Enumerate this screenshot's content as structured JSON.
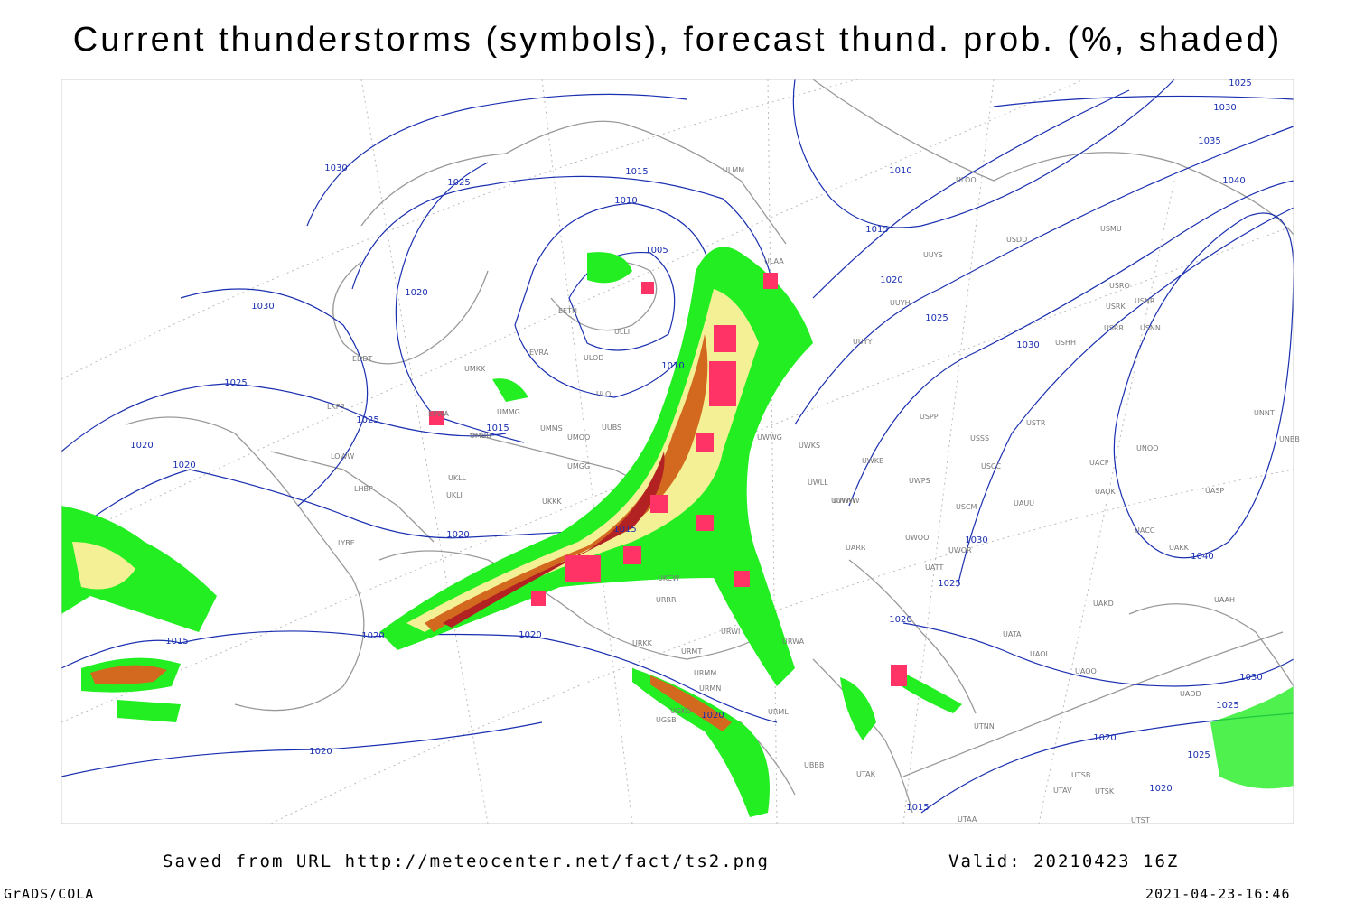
{
  "title": "Current thunderstorms (symbols), forecast thund. prob. (%, shaded)",
  "isobar_labels": [
    1030,
    1025,
    1015,
    1010,
    1005,
    1020,
    1030,
    1025,
    1025,
    1015,
    1020,
    1020,
    1010,
    1015,
    1020,
    1015,
    1020,
    1020,
    1020,
    1020,
    1010,
    1015,
    1020,
    1025,
    1030,
    1030,
    1040,
    1025,
    1020,
    1025,
    1030,
    1035,
    1040,
    1030,
    1025,
    1020,
    1025,
    1020,
    1015
  ],
  "stations": [
    "ULMM",
    "ULOO",
    "USDD",
    "USMU",
    "UUYS",
    "ULAA",
    "UUYH",
    "USRO",
    "USRK",
    "USNR",
    "USRR",
    "USNN",
    "USHH",
    "UUYY",
    "ULLI",
    "ULOD",
    "EVRA",
    "EETN",
    "ULOL",
    "UMKK",
    "EDDT",
    "LKPR",
    "EPWA",
    "UMMG",
    "UMMS",
    "UMOO",
    "UUBS",
    "UMBB",
    "UUWW",
    "UWKS",
    "UWKE",
    "UWPS",
    "UWWG",
    "LOWW",
    "LHBP",
    "UMGG",
    "UKLL",
    "UKLI",
    "UKKK",
    "UWWW",
    "UWLL",
    "URRR",
    "UKCW",
    "URWA",
    "URWI",
    "URKK",
    "URMT",
    "URMM",
    "URMN",
    "UGKO",
    "UGSB",
    "UBBB",
    "UTAK",
    "URML",
    "UTNN",
    "UATA",
    "UAOL",
    "UAOO",
    "UADD",
    "UAKD",
    "UARR",
    "UWOO",
    "UWOR",
    "UATT",
    "USCM",
    "UAUU",
    "USCC",
    "USSS",
    "USTR",
    "USPP",
    "UNOO",
    "UACP",
    "UAOK",
    "UASP",
    "UACC",
    "UAKK",
    "UAAH",
    "UNNT",
    "UNBB",
    "LYBE",
    "UTAA",
    "UTST",
    "UTSK",
    "UTSB",
    "UTAV"
  ],
  "footer": {
    "source": "Saved from URL http://meteocenter.net/fact/ts2.png",
    "valid": "Valid: 20210423 16Z",
    "software": "GrADS/COLA",
    "timestamp": "2021-04-23-16:46"
  }
}
